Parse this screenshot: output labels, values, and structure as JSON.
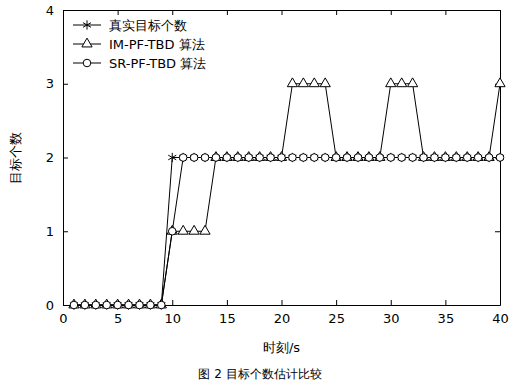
{
  "chart_data": {
    "type": "line",
    "title": "图 2 目标个数估计比较",
    "x_label": "时刻/s",
    "y_label": "目标个数",
    "x": [
      1,
      2,
      3,
      4,
      5,
      6,
      7,
      8,
      9,
      10,
      11,
      12,
      13,
      14,
      15,
      16,
      17,
      18,
      19,
      20,
      21,
      22,
      23,
      24,
      25,
      26,
      27,
      28,
      29,
      30,
      31,
      32,
      33,
      34,
      35,
      36,
      37,
      38,
      39,
      40
    ],
    "xlim": [
      0,
      40
    ],
    "xticks": [
      0,
      5,
      10,
      15,
      20,
      25,
      30,
      35,
      40
    ],
    "ylim": [
      0,
      4
    ],
    "yticks": [
      0,
      1,
      2,
      3,
      4
    ],
    "grid": false,
    "legend": "upper left",
    "series": [
      {
        "name": "真实目标个数",
        "color": "#000000",
        "marker": "star",
        "line_style": "solid",
        "values": [
          0,
          0,
          0,
          0,
          0,
          0,
          0,
          0,
          0,
          2,
          2,
          2,
          2,
          2,
          2,
          2,
          2,
          2,
          2,
          2,
          2,
          2,
          2,
          2,
          2,
          2,
          2,
          2,
          2,
          2,
          2,
          2,
          2,
          2,
          2,
          2,
          2,
          2,
          2,
          2
        ]
      },
      {
        "name": "IM-PF-TBD 算法",
        "color": "#000000",
        "marker": "triangle",
        "line_style": "solid",
        "values": [
          0,
          0,
          0,
          0,
          0,
          0,
          0,
          0,
          0,
          1,
          1,
          1,
          1,
          2,
          2,
          2,
          2,
          2,
          2,
          2,
          3,
          3,
          3,
          3,
          2,
          2,
          2,
          2,
          2,
          3,
          3,
          3,
          2,
          2,
          2,
          2,
          2,
          2,
          2,
          3
        ]
      },
      {
        "name": "SR-PF-TBD 算法",
        "color": "#000000",
        "marker": "circle",
        "line_style": "solid",
        "values": [
          0,
          0,
          0,
          0,
          0,
          0,
          0,
          0,
          0,
          1,
          2,
          2,
          2,
          2,
          2,
          2,
          2,
          2,
          2,
          2,
          2,
          2,
          2,
          2,
          2,
          2,
          2,
          2,
          2,
          2,
          2,
          2,
          2,
          2,
          2,
          2,
          2,
          2,
          2,
          2
        ]
      }
    ]
  }
}
